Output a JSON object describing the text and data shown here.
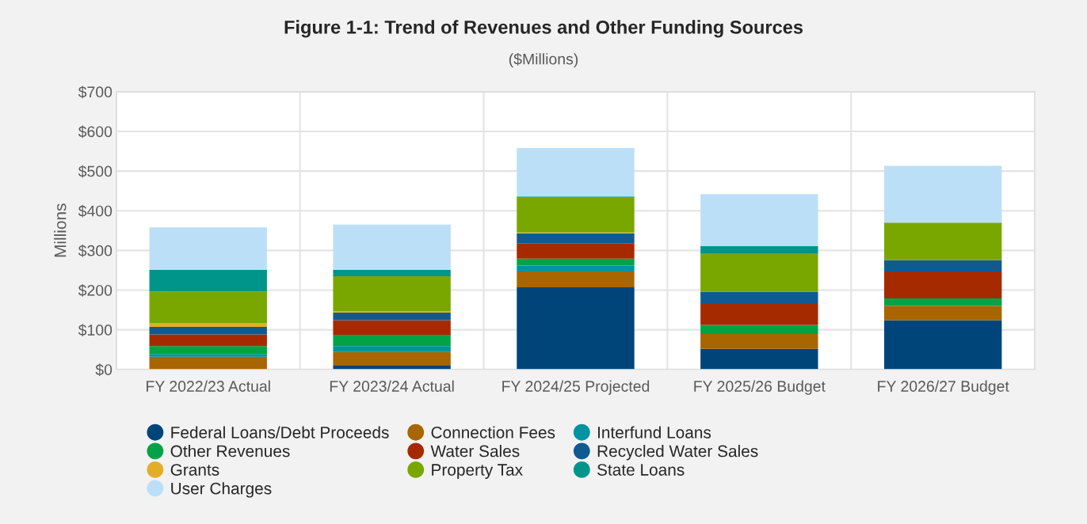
{
  "chart_data": {
    "type": "bar",
    "title": "Figure 1-1: Trend of Revenues and Other Funding Sources",
    "subtitle": "($Millions)",
    "ylabel": "Millions",
    "categories": [
      "FY 2022/23 Actual",
      "FY 2023/24 Actual",
      "FY 2024/25 Projected",
      "FY 2025/26 Budget",
      "FY 2026/27 Budget"
    ],
    "stacked": true,
    "series": [
      {
        "name": "Federal Loans/Debt Proceeds",
        "color": "#00457a",
        "values": [
          0,
          11,
          207,
          52,
          124
        ]
      },
      {
        "name": "Connection Fees",
        "color": "#a86500",
        "values": [
          32,
          33,
          40,
          37,
          36
        ]
      },
      {
        "name": "Interfund Loans",
        "color": "#0093a0",
        "values": [
          7,
          15,
          15,
          0,
          0
        ]
      },
      {
        "name": "Other Revenues",
        "color": "#00a346",
        "values": [
          20,
          28,
          17,
          23,
          19
        ]
      },
      {
        "name": "Water Sales",
        "color": "#a62a00",
        "values": [
          29,
          37,
          39,
          55,
          68
        ]
      },
      {
        "name": "Recycled Water Sales",
        "color": "#0f5b8f",
        "values": [
          19,
          19,
          25,
          29,
          28
        ]
      },
      {
        "name": "Grants",
        "color": "#e2ae2a",
        "values": [
          9,
          4,
          2,
          0,
          0
        ]
      },
      {
        "name": "Property Tax",
        "color": "#7aa600",
        "values": [
          80,
          88,
          88,
          95,
          95
        ]
      },
      {
        "name": "State Loans",
        "color": "#00958a",
        "values": [
          55,
          16,
          3,
          20,
          0
        ]
      },
      {
        "name": "User Charges",
        "color": "#bcdff8",
        "values": [
          107,
          114,
          122,
          131,
          143
        ]
      }
    ],
    "ylim": [
      0,
      700
    ],
    "yticks": [
      {
        "value": 0,
        "label": "$0"
      },
      {
        "value": 100,
        "label": "$100"
      },
      {
        "value": 200,
        "label": "$200"
      },
      {
        "value": 300,
        "label": "$300"
      },
      {
        "value": 400,
        "label": "$400"
      },
      {
        "value": 500,
        "label": "$500"
      },
      {
        "value": 600,
        "label": "$600"
      },
      {
        "value": 700,
        "label": "$700"
      }
    ],
    "grid": true,
    "legend": "bottom"
  }
}
